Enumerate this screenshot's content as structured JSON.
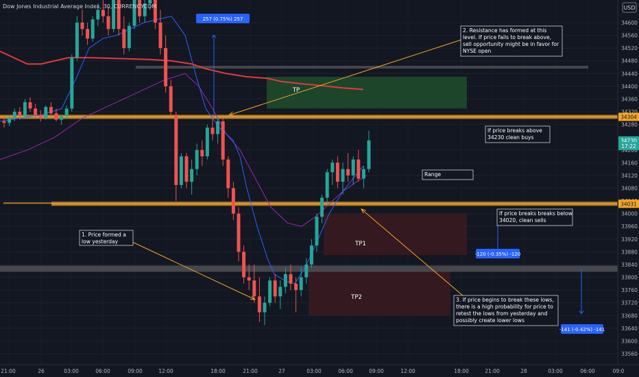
{
  "header": {
    "symbol_title": "Dow Jones Industrial Average Index, 30, CURRENCYCOM"
  },
  "currency_label": "USD",
  "colors": {
    "background": "#131722",
    "bull": "#26a69a",
    "bear": "#ef5350",
    "ema_red": "#e23b3b",
    "blue_ma": "#2962ff",
    "purple_ma": "#9c27b0",
    "orange_level": "#f5a623",
    "gray_level": "#707070",
    "tp_green": "#1f4d2b",
    "tp_red": "#3b1a20"
  },
  "chart_data": {
    "type": "candlestick",
    "ylim": [
      33540,
      34720
    ],
    "y_ticks": [
      34600,
      34560,
      34520,
      34480,
      34440,
      34400,
      34360,
      34320,
      34280,
      34200,
      34160,
      34120,
      34080,
      34040,
      34000,
      33960,
      33920,
      33880,
      33840,
      33800,
      33760,
      33720,
      33680,
      33640,
      33600,
      33560
    ],
    "x_tick_labels": [
      "21:00",
      "26",
      "03:00",
      "06:00",
      "09:00",
      "12:00",
      "18:00",
      "21:00",
      "27",
      "03:00",
      "06:00",
      "09:00",
      "12:00",
      "18:00",
      "21:00",
      "28",
      "03:00",
      "06:00",
      "09:0"
    ],
    "price_labels": [
      {
        "text": "34304",
        "value": 34304,
        "color": "#f5a623"
      },
      {
        "text": "34230",
        "value": 34230,
        "color": "#26a69a"
      },
      {
        "text": "17:22",
        "value": 34212,
        "color": "#26a69a"
      },
      {
        "text": "34031",
        "value": 34031,
        "color": "#f5a623"
      }
    ],
    "candles": [
      [
        34290,
        34305,
        34270,
        34285
      ],
      [
        34285,
        34310,
        34275,
        34300
      ],
      [
        34300,
        34330,
        34290,
        34320
      ],
      [
        34320,
        34335,
        34295,
        34305
      ],
      [
        34305,
        34360,
        34300,
        34350
      ],
      [
        34350,
        34365,
        34320,
        34330
      ],
      [
        34330,
        34345,
        34300,
        34310
      ],
      [
        34310,
        34325,
        34290,
        34300
      ],
      [
        34300,
        34340,
        34295,
        34335
      ],
      [
        34335,
        34350,
        34310,
        34315
      ],
      [
        34315,
        34330,
        34290,
        34295
      ],
      [
        34295,
        34310,
        34280,
        34305
      ],
      [
        34305,
        34340,
        34300,
        34330
      ],
      [
        34330,
        34500,
        34320,
        34490
      ],
      [
        34490,
        34620,
        34480,
        34600
      ],
      [
        34600,
        34640,
        34560,
        34580
      ],
      [
        34580,
        34600,
        34530,
        34550
      ],
      [
        34550,
        34620,
        34540,
        34610
      ],
      [
        34610,
        34660,
        34590,
        34640
      ],
      [
        34640,
        34680,
        34600,
        34620
      ],
      [
        34620,
        34650,
        34560,
        34580
      ],
      [
        34580,
        34720,
        34570,
        34700
      ],
      [
        34700,
        34720,
        34560,
        34580
      ],
      [
        34580,
        34620,
        34500,
        34520
      ],
      [
        34520,
        34600,
        34510,
        34590
      ],
      [
        34590,
        34720,
        34580,
        34700
      ],
      [
        34700,
        34720,
        34600,
        34620
      ],
      [
        34620,
        34680,
        34600,
        34660
      ],
      [
        34660,
        34720,
        34640,
        34690
      ],
      [
        34690,
        34700,
        34580,
        34600
      ],
      [
        34600,
        34640,
        34500,
        34520
      ],
      [
        34520,
        34560,
        34380,
        34400
      ],
      [
        34400,
        34420,
        34310,
        34320
      ],
      [
        34310,
        34320,
        34040,
        34090
      ],
      [
        34090,
        34190,
        34080,
        34180
      ],
      [
        34180,
        34190,
        34080,
        34100
      ],
      [
        34100,
        34170,
        34060,
        34140
      ],
      [
        34140,
        34220,
        34120,
        34200
      ],
      [
        34200,
        34230,
        34150,
        34180
      ],
      [
        34180,
        34280,
        34170,
        34270
      ],
      [
        34270,
        34310,
        34230,
        34250
      ],
      [
        34250,
        34300,
        34220,
        34290
      ],
      [
        34290,
        34300,
        34150,
        34170
      ],
      [
        34170,
        34180,
        34050,
        34080
      ],
      [
        34080,
        34100,
        33980,
        34000
      ],
      [
        34000,
        34020,
        33850,
        33880
      ],
      [
        33880,
        33900,
        33780,
        33800
      ],
      [
        33800,
        33840,
        33760,
        33790
      ],
      [
        33790,
        33840,
        33720,
        33740
      ],
      [
        33740,
        33800,
        33660,
        33690
      ],
      [
        33690,
        33740,
        33650,
        33720
      ],
      [
        33720,
        33800,
        33710,
        33790
      ],
      [
        33790,
        33810,
        33720,
        33740
      ],
      [
        33740,
        33790,
        33700,
        33770
      ],
      [
        33770,
        33830,
        33750,
        33810
      ],
      [
        33810,
        33840,
        33760,
        33780
      ],
      [
        33780,
        33800,
        33690,
        33760
      ],
      [
        33760,
        33830,
        33740,
        33800
      ],
      [
        33800,
        33860,
        33780,
        33840
      ],
      [
        33840,
        33920,
        33830,
        33900
      ],
      [
        33900,
        34000,
        33880,
        33990
      ],
      [
        33990,
        34060,
        33970,
        34050
      ],
      [
        34050,
        34140,
        34030,
        34130
      ],
      [
        34130,
        34170,
        34090,
        34160
      ],
      [
        34160,
        34180,
        34080,
        34100
      ],
      [
        34100,
        34160,
        34060,
        34140
      ],
      [
        34140,
        34190,
        34100,
        34120
      ],
      [
        34120,
        34180,
        34090,
        34170
      ],
      [
        34170,
        34200,
        34100,
        34110
      ],
      [
        34110,
        34150,
        34080,
        34140
      ],
      [
        34140,
        34260,
        34130,
        34230
      ]
    ],
    "red_ema": [
      [
        0,
        34510
      ],
      [
        20,
        34490
      ],
      [
        40,
        34470
      ],
      [
        60,
        34470
      ],
      [
        80,
        34480
      ],
      [
        100,
        34490
      ],
      [
        130,
        34490
      ],
      [
        160,
        34488
      ],
      [
        190,
        34486
      ],
      [
        220,
        34484
      ],
      [
        250,
        34480
      ],
      [
        280,
        34470
      ],
      [
        300,
        34455
      ],
      [
        330,
        34440
      ],
      [
        360,
        34430
      ],
      [
        390,
        34425
      ],
      [
        410,
        34415
      ],
      [
        440,
        34408
      ],
      [
        470,
        34402
      ],
      [
        500,
        34395
      ],
      [
        530,
        34390
      ]
    ],
    "blue_ma": [
      [
        0,
        34290
      ],
      [
        30,
        34300
      ],
      [
        60,
        34310
      ],
      [
        90,
        34330
      ],
      [
        110,
        34420
      ],
      [
        130,
        34520
      ],
      [
        150,
        34550
      ],
      [
        170,
        34560
      ],
      [
        190,
        34580
      ],
      [
        210,
        34600
      ],
      [
        230,
        34610
      ],
      [
        250,
        34620
      ],
      [
        270,
        34560
      ],
      [
        285,
        34440
      ],
      [
        300,
        34330
      ],
      [
        320,
        34270
      ],
      [
        340,
        34230
      ],
      [
        350,
        34180
      ],
      [
        360,
        34080
      ],
      [
        375,
        33960
      ],
      [
        390,
        33860
      ],
      [
        400,
        33810
      ],
      [
        415,
        33790
      ],
      [
        430,
        33780
      ],
      [
        445,
        33830
      ],
      [
        460,
        33900
      ],
      [
        480,
        34000
      ],
      [
        500,
        34070
      ],
      [
        515,
        34110
      ],
      [
        530,
        34150
      ]
    ],
    "purple_ma": [
      [
        0,
        34170
      ],
      [
        40,
        34200
      ],
      [
        80,
        34240
      ],
      [
        120,
        34300
      ],
      [
        160,
        34340
      ],
      [
        200,
        34380
      ],
      [
        240,
        34420
      ],
      [
        270,
        34440
      ],
      [
        290,
        34400
      ],
      [
        310,
        34330
      ],
      [
        330,
        34250
      ],
      [
        350,
        34200
      ],
      [
        370,
        34120
      ],
      [
        395,
        34020
      ],
      [
        420,
        33970
      ],
      [
        440,
        33960
      ],
      [
        460,
        33990
      ],
      [
        480,
        34030
      ],
      [
        500,
        34070
      ],
      [
        520,
        34100
      ],
      [
        535,
        34120
      ]
    ],
    "levels": [
      {
        "name": "resistance",
        "value": 34304,
        "x1": 0,
        "x2": 932,
        "color": "#f5a623"
      },
      {
        "name": "support",
        "value": 34031,
        "x1": 75,
        "x2": 932,
        "color": "#f5a623"
      },
      {
        "name": "support-thin",
        "value": 34033,
        "x1": 5,
        "x2": 75,
        "color": "#f5a623"
      },
      {
        "name": "upper-gray",
        "value": 34460,
        "x1": 198,
        "x2": 858,
        "color": "#707070"
      },
      {
        "name": "lower-gray",
        "value": 33827,
        "x1": 0,
        "x2": 932,
        "color": "#707070"
      }
    ],
    "zones": [
      {
        "label": "TP",
        "x1": 389,
        "x2": 681,
        "top": 34430,
        "bottom": 34330,
        "fill": "#1f4d2b"
      },
      {
        "label": "TP1",
        "x1": 472,
        "x2": 681,
        "top": 34000,
        "bottom": 33870,
        "fill": "#3b1a20"
      },
      {
        "label": "TP2",
        "x1": 450,
        "x2": 657,
        "top": 33820,
        "bottom": 33680,
        "fill": "#3b1a20"
      }
    ],
    "measures": [
      {
        "label": "257 (0.75%) 257",
        "x": 312,
        "from": 34304,
        "to": 34561
      },
      {
        "label": "-120 (-0.35%) -120",
        "x": 726,
        "from": 34000,
        "to": 33880
      },
      {
        "label": "-141 (-0.42%) -141",
        "x": 848,
        "from": 33827,
        "to": 33686
      }
    ],
    "annotations": [
      {
        "id": "note-resistance",
        "lines": [
          "2. Resistance has formed at this",
          "level. If price fails to break above,",
          "sell opportunity might be in favor for",
          "NYSE open"
        ]
      },
      {
        "id": "note-breaks-above",
        "lines": [
          "If price breaks above",
          "34230 clean buys"
        ]
      },
      {
        "id": "note-range",
        "lines": [
          "Range"
        ]
      },
      {
        "id": "note-breaks-below",
        "lines": [
          "If price breaks breaks below",
          "34020, clean sells"
        ]
      },
      {
        "id": "note-low-yesterday",
        "lines": [
          "1. Price formed a",
          "low yesterday"
        ]
      },
      {
        "id": "note-lows",
        "lines": [
          "3. If price begins to break these lows,",
          "there is a high probability for price to",
          "retest the lows from yesterday and",
          "possibly create lower lows"
        ]
      }
    ]
  }
}
